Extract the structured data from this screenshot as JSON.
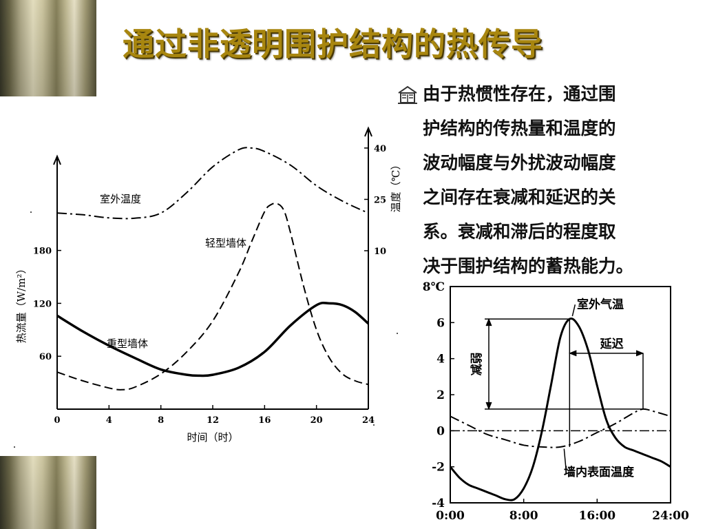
{
  "title": "通过非透明围护结构的热传导",
  "bullet_icon": "book-house-bullet-icon",
  "paragraph_lines": [
    "由于热惯性存在，通过围",
    "护结构的传热量和温度的",
    "波动幅度与外扰波动幅度",
    "之间存在衰减和延迟的关",
    "系。衰减和滞后的程度取",
    "决于围护结构的蓄热能力。"
  ],
  "chart_data": [
    {
      "type": "line",
      "xlabel": "时间（时）",
      "ylabel": "热流量（W/m²）",
      "y2label": "温度（℃）",
      "x_ticks": [
        0,
        4,
        8,
        12,
        16,
        20,
        24
      ],
      "x_tick_labels": [
        "0",
        "4",
        "8",
        "12",
        "16",
        "20",
        "24"
      ],
      "xlim": [
        0,
        24
      ],
      "y_ticks": [
        60,
        120,
        180
      ],
      "y_tick_labels": [
        "60",
        "120",
        "180"
      ],
      "ylim": [
        0,
        290
      ],
      "y2_ticks": [
        10,
        25,
        40
      ],
      "y2_tick_labels": [
        "10",
        "25",
        "40"
      ],
      "series": [
        {
          "name": "室外温度",
          "style": "dash-dot",
          "axis": "right",
          "x": [
            0,
            2,
            4,
            6,
            8,
            10,
            12,
            14,
            15,
            16,
            18,
            20,
            22,
            24
          ],
          "y": [
            21,
            20.5,
            19.6,
            19.5,
            21,
            27,
            34.5,
            39.5,
            40,
            39,
            35,
            29,
            24.5,
            21
          ]
        },
        {
          "name": "轻型墙体",
          "style": "dashed",
          "axis": "left",
          "x": [
            0,
            2,
            4,
            5,
            6,
            8,
            10,
            12,
            14,
            15,
            16,
            16.5,
            17,
            17.5,
            18,
            19,
            20,
            21,
            22,
            23,
            24
          ],
          "y": [
            42,
            32,
            24,
            22,
            25,
            40,
            65,
            100,
            155,
            190,
            224,
            232,
            233,
            225,
            200,
            140,
            90,
            58,
            40,
            32,
            28
          ]
        },
        {
          "name": "重型墙体",
          "style": "solid",
          "axis": "left",
          "x": [
            0,
            2,
            4,
            6,
            8,
            10,
            11,
            12,
            14,
            16,
            18,
            20,
            21,
            22,
            23,
            24
          ],
          "y": [
            106,
            88,
            72,
            58,
            45,
            39,
            38,
            39,
            47,
            65,
            95,
            118,
            120,
            118,
            110,
            97
          ]
        }
      ],
      "annotations": [
        "室外温度",
        "轻型墙体",
        "重型墙体"
      ]
    },
    {
      "type": "line",
      "ylabel_unit": "℃",
      "x_tick_labels": [
        "0:00",
        "8:00",
        "16:00",
        "24:00"
      ],
      "x_ticks": [
        0,
        8,
        16,
        24
      ],
      "xlim": [
        0,
        24
      ],
      "y_ticks": [
        -4,
        -2,
        0,
        2,
        4,
        6,
        8
      ],
      "y_tick_labels": [
        "-4",
        "-2",
        "0",
        "2",
        "4",
        "6",
        "8"
      ],
      "ylim": [
        -4,
        8
      ],
      "series": [
        {
          "name": "室外气温",
          "style": "solid",
          "x": [
            0,
            1,
            2,
            3,
            4,
            5,
            6,
            7,
            8,
            9,
            10,
            11,
            12,
            13,
            14,
            15,
            16,
            17,
            18,
            19,
            20,
            21,
            22,
            23,
            24
          ],
          "y": [
            -2,
            -2.6,
            -3.0,
            -3.2,
            -3.4,
            -3.6,
            -3.8,
            -3.8,
            -3.2,
            -2.0,
            0,
            2.6,
            5.2,
            6.2,
            5.8,
            4.5,
            2.5,
            0.6,
            -0.4,
            -0.9,
            -1.1,
            -1.3,
            -1.5,
            -1.7,
            -2.0
          ]
        },
        {
          "name": "墙内表面温度",
          "style": "dash-dot",
          "x": [
            0,
            2,
            4,
            6,
            8,
            10,
            12,
            14,
            16,
            18,
            20,
            21,
            22,
            24
          ],
          "y": [
            0.8,
            0.3,
            -0.2,
            -0.5,
            -0.8,
            -0.9,
            -0.9,
            -0.6,
            -0.1,
            0.4,
            1.0,
            1.2,
            1.1,
            0.8
          ]
        }
      ],
      "annotations": [
        "室外气温",
        "延迟",
        "减弱",
        "墙内表面温度"
      ]
    }
  ]
}
